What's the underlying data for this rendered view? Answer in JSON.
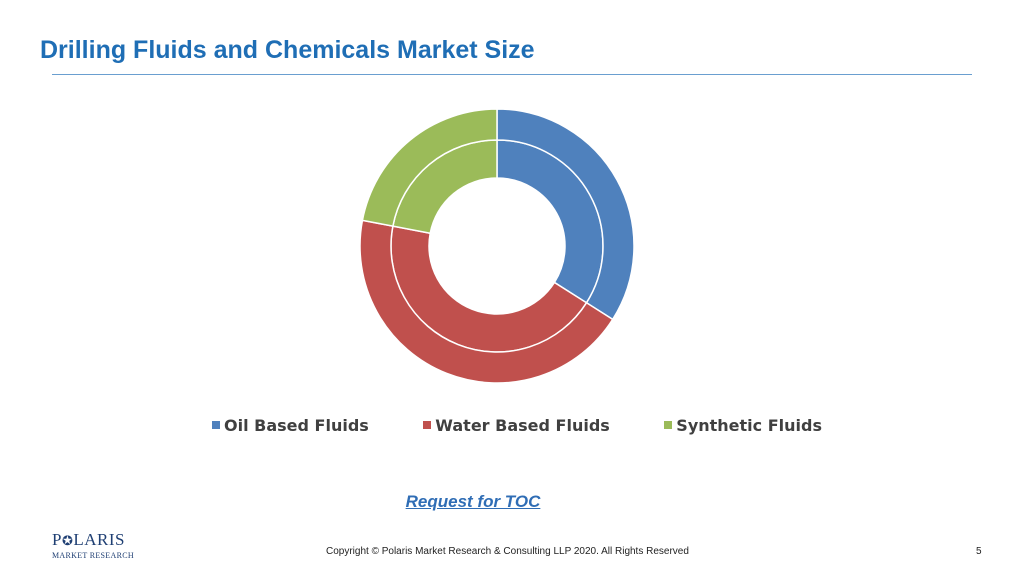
{
  "header": {
    "title": "Drilling Fluids and Chemicals Market Size"
  },
  "chart_data": {
    "type": "pie",
    "subtype": "doughnut",
    "categories": [
      "Oil Based Fluids",
      "Water Based Fluids",
      "Synthetic Fluids"
    ],
    "colors": [
      "#4f81bd",
      "#c0504d",
      "#9bbb59"
    ],
    "series": [
      {
        "values": [
          34,
          44,
          22
        ]
      },
      {
        "values": [
          34,
          44,
          22
        ]
      }
    ],
    "legend_position": "bottom"
  },
  "legend": {
    "items": [
      {
        "label": "Oil Based Fluids",
        "color": "#4f81bd"
      },
      {
        "label": "Water Based Fluids",
        "color": "#c0504d"
      },
      {
        "label": "Synthetic Fluids",
        "color": "#9bbb59"
      }
    ]
  },
  "cta": {
    "label": "Request for TOC"
  },
  "logo": {
    "name": "POLARIS",
    "sub": "MARKET RESEARCH",
    "icon": "star-icon"
  },
  "footer": {
    "copyright": "Copyright © Polaris Market Research & Consulting LLP 2020. All Rights Reserved",
    "page_number": "5"
  }
}
